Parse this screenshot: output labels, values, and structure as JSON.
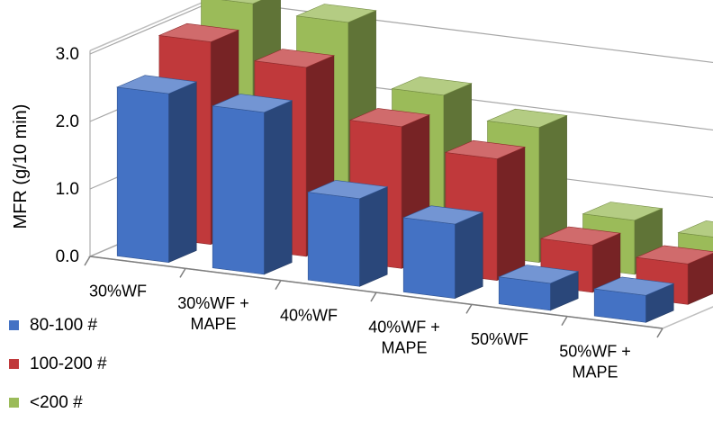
{
  "chart_data": {
    "type": "bar",
    "subtype": "3d-clustered-column",
    "title": "",
    "xlabel": "",
    "ylabel": "MFR (g/10 min)",
    "ylim": [
      0,
      3.0
    ],
    "yticks": [
      "0.0",
      "1.0",
      "2.0",
      "3.0"
    ],
    "grid": true,
    "legend_position": "bottom-left",
    "categories": [
      [
        "30%WF"
      ],
      [
        "30%WF +",
        "MAPE"
      ],
      [
        "40%WF"
      ],
      [
        "40%WF +",
        "MAPE"
      ],
      [
        "50%WF"
      ],
      [
        "50%WF +",
        "MAPE"
      ]
    ],
    "series": [
      {
        "name": "80-100 #",
        "color": "#4472C4",
        "values": [
          2.5,
          2.4,
          1.3,
          1.1,
          0.4,
          0.4
        ]
      },
      {
        "name": "100-200 #",
        "color": "#C0393B",
        "values": [
          3.0,
          2.8,
          2.1,
          1.8,
          0.7,
          0.6
        ]
      },
      {
        "name": "<200 #",
        "color": "#9BBB59",
        "values": [
          3.3,
          3.2,
          2.3,
          2.0,
          0.8,
          0.7
        ]
      }
    ]
  }
}
